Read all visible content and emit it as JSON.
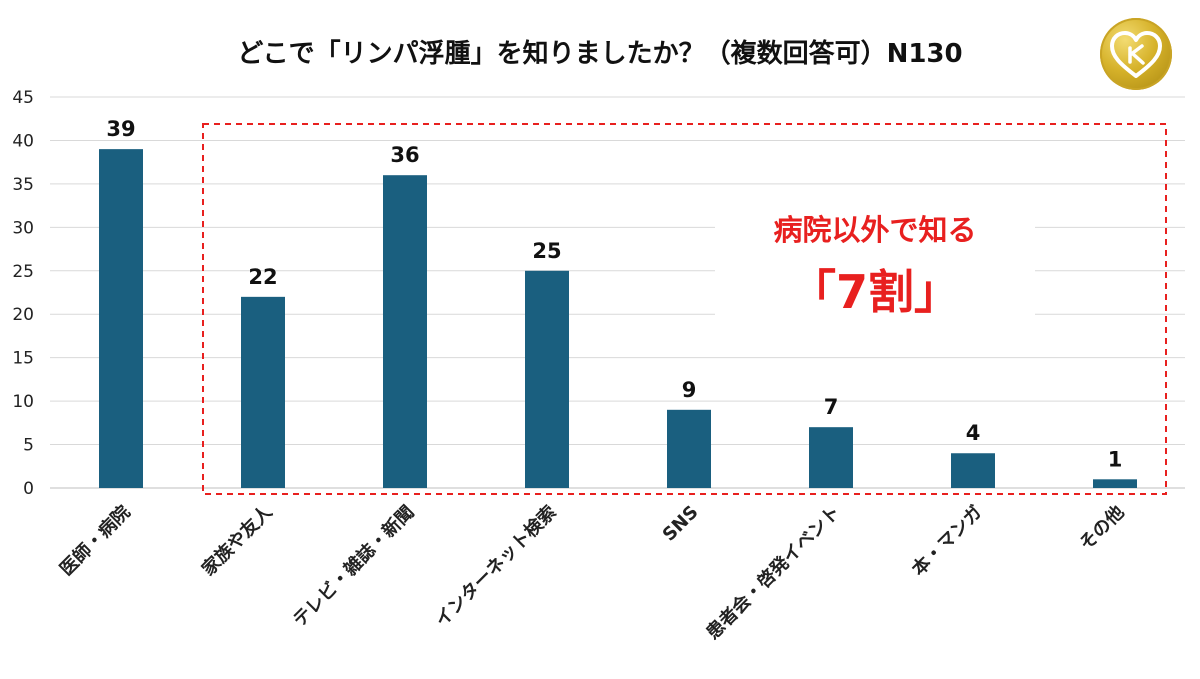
{
  "chart_data": {
    "type": "bar",
    "title": "どこで「リンパ浮腫」を知りましたか？（複数回答可）N130",
    "categories": [
      "医師・病院",
      "家族や友人",
      "テレビ・雑誌・新聞",
      "インターネット検索",
      "SNS",
      "患者会・啓発イベント",
      "本・マンガ",
      "その他"
    ],
    "values": [
      39,
      22,
      36,
      25,
      9,
      7,
      4,
      1
    ],
    "yticks": [
      0,
      5,
      10,
      15,
      20,
      25,
      30,
      35,
      40,
      45
    ],
    "ylim": [
      0,
      45
    ],
    "grid": true,
    "bar_color": "#1a5f7f",
    "callout": {
      "line1": "病院以外で知る",
      "line2": "「7割」",
      "color": "#e8201f"
    }
  },
  "logo": {
    "icon": "gold-heart-logo-icon"
  }
}
